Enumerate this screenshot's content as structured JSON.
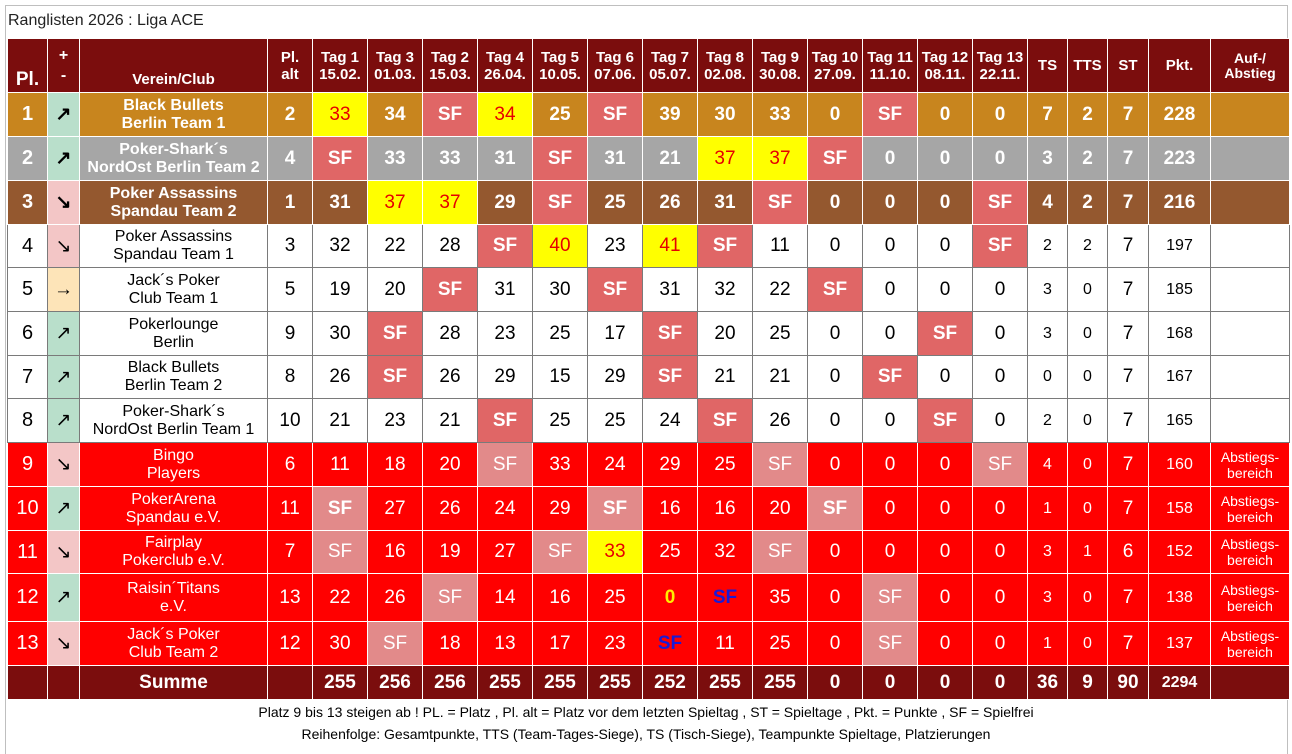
{
  "page": {
    "title": "Ranglisten 2026 : Liga ACE"
  },
  "table": {
    "headers": {
      "place": "Pl.",
      "trend_top": "+",
      "trend_bottom": "-",
      "club": "Verein/Club",
      "old_top": "Pl.",
      "old_bottom": "alt",
      "days": [
        {
          "top": "Tag 1",
          "bottom": "15.02."
        },
        {
          "top": "Tag 3",
          "bottom": "01.03."
        },
        {
          "top": "Tag 2",
          "bottom": "15.03."
        },
        {
          "top": "Tag 4",
          "bottom": "26.04."
        },
        {
          "top": "Tag 5",
          "bottom": "10.05."
        },
        {
          "top": "Tag 6",
          "bottom": "07.06."
        },
        {
          "top": "Tag 7",
          "bottom": "05.07."
        },
        {
          "top": "Tag 8",
          "bottom": "02.08."
        },
        {
          "top": "Tag 9",
          "bottom": "30.08."
        },
        {
          "top": "Tag 10",
          "bottom": "27.09."
        },
        {
          "top": "Tag 11",
          "bottom": "11.10."
        },
        {
          "top": "Tag 12",
          "bottom": "08.11."
        },
        {
          "top": "Tag 13",
          "bottom": "22.11."
        }
      ],
      "ts": "TS",
      "tts": "TTS",
      "st": "ST",
      "pkt": "Pkt.",
      "auf_top": "Auf-/",
      "auf_bottom": "Abstieg"
    },
    "rows": [
      {
        "place": "1",
        "trend": "up",
        "trend_symbol": "↗",
        "club_line1": "Black Bullets",
        "club_line2": "Berlin Team 1",
        "old": "2",
        "days": [
          "33",
          "34",
          "SF",
          "34",
          "25",
          "SF",
          "39",
          "30",
          "33",
          "0",
          "SF",
          "0",
          "0"
        ],
        "ts": "7",
        "tts": "2",
        "st": "7",
        "pkt": "228",
        "auf": ""
      },
      {
        "place": "2",
        "trend": "up",
        "trend_symbol": "↗",
        "club_line1": "Poker-Shark´s",
        "club_line2": "NordOst Berlin Team 2",
        "old": "4",
        "days": [
          "SF",
          "33",
          "33",
          "31",
          "SF",
          "31",
          "21",
          "37",
          "37",
          "SF",
          "0",
          "0",
          "0"
        ],
        "ts": "3",
        "tts": "2",
        "st": "7",
        "pkt": "223",
        "auf": ""
      },
      {
        "place": "3",
        "trend": "down",
        "trend_symbol": "↘",
        "club_line1": "Poker Assassins",
        "club_line2": "Spandau Team 2",
        "old": "1",
        "days": [
          "31",
          "37",
          "37",
          "29",
          "SF",
          "25",
          "26",
          "31",
          "SF",
          "0",
          "0",
          "0",
          "SF"
        ],
        "ts": "4",
        "tts": "2",
        "st": "7",
        "pkt": "216",
        "auf": ""
      },
      {
        "place": "4",
        "trend": "down",
        "trend_symbol": "↘",
        "club_line1": "Poker Assassins",
        "club_line2": "Spandau Team 1",
        "old": "3",
        "days": [
          "32",
          "22",
          "28",
          "SF",
          "40",
          "23",
          "41",
          "SF",
          "11",
          "0",
          "0",
          "0",
          "SF"
        ],
        "ts": "2",
        "tts": "2",
        "st": "7",
        "pkt": "197",
        "auf": ""
      },
      {
        "place": "5",
        "trend": "same",
        "trend_symbol": "→",
        "club_line1": "Jack´s Poker",
        "club_line2": "Club Team 1",
        "old": "5",
        "days": [
          "19",
          "20",
          "SF",
          "31",
          "30",
          "SF",
          "31",
          "32",
          "22",
          "SF",
          "0",
          "0",
          "0"
        ],
        "ts": "3",
        "tts": "0",
        "st": "7",
        "pkt": "185",
        "auf": ""
      },
      {
        "place": "6",
        "trend": "up",
        "trend_symbol": "↗",
        "club_line1": "Pokerlounge",
        "club_line2": "Berlin",
        "old": "9",
        "days": [
          "30",
          "SF",
          "28",
          "23",
          "25",
          "17",
          "SF",
          "20",
          "25",
          "0",
          "0",
          "SF",
          "0"
        ],
        "ts": "3",
        "tts": "0",
        "st": "7",
        "pkt": "168",
        "auf": ""
      },
      {
        "place": "7",
        "trend": "up",
        "trend_symbol": "↗",
        "club_line1": "Black Bullets",
        "club_line2": "Berlin Team 2",
        "old": "8",
        "days": [
          "26",
          "SF",
          "26",
          "29",
          "15",
          "29",
          "SF",
          "21",
          "21",
          "0",
          "SF",
          "0",
          "0"
        ],
        "ts": "0",
        "tts": "0",
        "st": "7",
        "pkt": "167",
        "auf": ""
      },
      {
        "place": "8",
        "trend": "up",
        "trend_symbol": "↗",
        "club_line1": "Poker-Shark´s",
        "club_line2": "NordOst Berlin Team 1",
        "old": "10",
        "days": [
          "21",
          "23",
          "21",
          "SF",
          "25",
          "25",
          "24",
          "SF",
          "26",
          "0",
          "0",
          "SF",
          "0"
        ],
        "ts": "2",
        "tts": "0",
        "st": "7",
        "pkt": "165",
        "auf": ""
      },
      {
        "place": "9",
        "trend": "down",
        "trend_symbol": "↘",
        "club_line1": "Bingo",
        "club_line2": "Players",
        "old": "6",
        "days": [
          "11",
          "18",
          "20",
          "SF",
          "33",
          "24",
          "29",
          "25",
          "SF",
          "0",
          "0",
          "0",
          "SF"
        ],
        "ts": "4",
        "tts": "0",
        "st": "7",
        "pkt": "160",
        "auf_line1": "Abstiegs-",
        "auf_line2": "bereich"
      },
      {
        "place": "10",
        "trend": "up",
        "trend_symbol": "↗",
        "club_line1": "PokerArena",
        "club_line2": "Spandau e.V.",
        "old": "11",
        "days": [
          "SF",
          "27",
          "26",
          "24",
          "29",
          "SF",
          "16",
          "16",
          "20",
          "SF",
          "0",
          "0",
          "0"
        ],
        "ts": "1",
        "tts": "0",
        "st": "7",
        "pkt": "158",
        "auf_line1": "Abstiegs-",
        "auf_line2": "bereich"
      },
      {
        "place": "11",
        "trend": "down",
        "trend_symbol": "↘",
        "club_line1": "Fairplay",
        "club_line2": "Pokerclub e.V.",
        "old": "7",
        "days": [
          "SF",
          "16",
          "19",
          "27",
          "SF",
          "33",
          "25",
          "32",
          "SF",
          "0",
          "0",
          "0",
          "0"
        ],
        "ts": "3",
        "tts": "1",
        "st": "6",
        "pkt": "152",
        "auf_line1": "Abstiegs-",
        "auf_line2": "bereich"
      },
      {
        "place": "12",
        "trend": "up",
        "trend_symbol": "↗",
        "club_line1": "Raisin´Titans",
        "club_line2": "e.V.",
        "old": "13",
        "days": [
          "22",
          "26",
          "SF",
          "14",
          "16",
          "25",
          "0",
          "SF",
          "35",
          "0",
          "SF",
          "0",
          "0"
        ],
        "ts": "3",
        "tts": "0",
        "st": "7",
        "pkt": "138",
        "auf_line1": "Abstiegs-",
        "auf_line2": "bereich"
      },
      {
        "place": "13",
        "trend": "down",
        "trend_symbol": "↘",
        "club_line1": "Jack´s Poker",
        "club_line2": "Club Team 2",
        "old": "12",
        "days": [
          "30",
          "SF",
          "18",
          "13",
          "17",
          "23",
          "SF",
          "11",
          "25",
          "0",
          "SF",
          "0",
          "0"
        ],
        "ts": "1",
        "tts": "0",
        "st": "7",
        "pkt": "137",
        "auf_line1": "Abstiegs-",
        "auf_line2": "bereich"
      }
    ],
    "sum": {
      "label": "Summe",
      "days": [
        "255",
        "256",
        "256",
        "255",
        "255",
        "255",
        "252",
        "255",
        "255",
        "0",
        "0",
        "0",
        "0"
      ],
      "ts": "36",
      "tts": "9",
      "st": "90",
      "pkt": "2294"
    }
  },
  "footer": {
    "note1": "Platz 9 bis 13 steigen ab ! PL. = Platz , Pl. alt = Platz vor dem letzten Spieltag , ST = Spieltage , Pkt. = Punkte , SF = Spielfrei",
    "note2": "Reihenfolge: Gesamtpunkte, TTS (Team-Tages-Siege), TS (Tisch-Siege), Teampunkte Spieltage, Platzierungen"
  },
  "colors": {
    "header_bg": "#7b0d0d",
    "gold": "#c8851e",
    "silver": "#a6a6a6",
    "bronze": "#94582f",
    "relegation": "#ff0000",
    "sf": "#e06666",
    "highlight": "#ffff00",
    "trend_up": "#b9dfcb",
    "trend_down": "#f3c6c6",
    "trend_same": "#fde4b8"
  }
}
